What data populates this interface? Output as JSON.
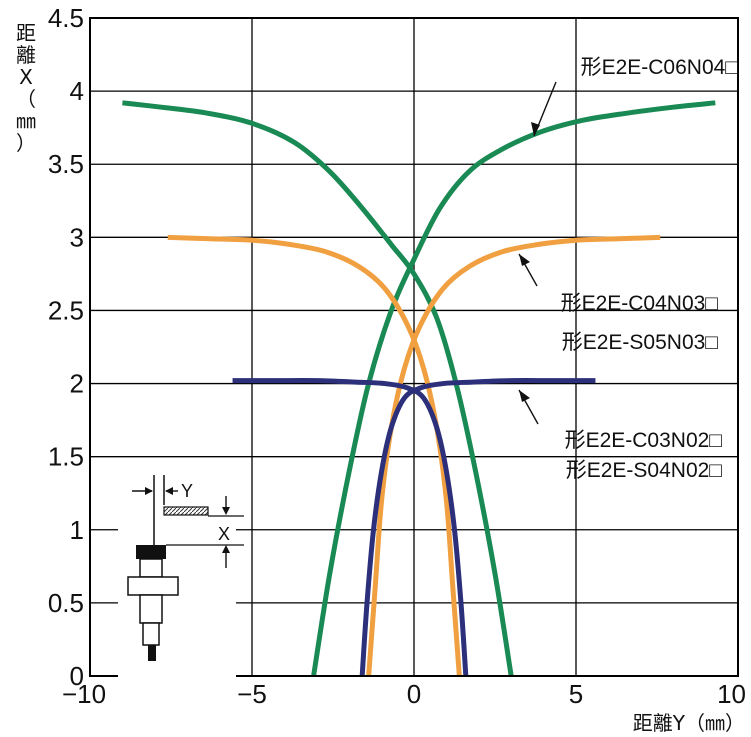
{
  "chart_data": {
    "type": "line",
    "xlabel": "距離Y（㎜）",
    "ylabel": "距離X（㎜）",
    "xlim": [
      -10,
      10
    ],
    "ylim": [
      0,
      4.5
    ],
    "xticks": [
      "−10",
      "−5",
      "0",
      "5",
      "10"
    ],
    "yticks": [
      "0",
      "0.5",
      "1",
      "1.5",
      "2",
      "2.5",
      "3",
      "3.5",
      "4",
      "4.5"
    ],
    "grid": true,
    "colors": {
      "e2e_c06": "#1a8a55",
      "e2e_c04_s05": "#f0a040",
      "e2e_c03_s04": "#2c2f7a"
    },
    "series": [
      {
        "key": "e2e_c06",
        "name": "形E2E-C06N04□",
        "color": "#1a8a55",
        "curves": [
          {
            "x": [
              -3.1,
              -2.6,
              -2.0,
              -1.4,
              -0.7,
              0,
              0.8,
              1.7,
              2.7,
              3.9,
              5.2,
              6.6,
              8.0,
              9.3
            ],
            "y": [
              0.0,
              0.7,
              1.4,
              2.0,
              2.5,
              2.85,
              3.2,
              3.45,
              3.6,
              3.72,
              3.8,
              3.85,
              3.89,
              3.92
            ]
          },
          {
            "x": [
              -9.0,
              -7.8,
              -6.4,
              -5.0,
              -3.7,
              -2.6,
              -1.6,
              -0.7,
              0,
              0.7,
              1.3,
              1.9,
              2.5,
              3.0
            ],
            "y": [
              3.92,
              3.89,
              3.85,
              3.78,
              3.65,
              3.45,
              3.2,
              2.95,
              2.75,
              2.45,
              2.0,
              1.4,
              0.7,
              0.0
            ]
          }
        ]
      },
      {
        "key": "e2e_c04_s05",
        "name": "形E2E-C04N03□ / 形E2E-S05N03□",
        "color": "#f0a040",
        "curves": [
          {
            "x": [
              -1.4,
              -1.2,
              -1.0,
              -0.7,
              -0.3,
              0.2,
              0.9,
              1.7,
              2.7,
              3.8,
              5.0,
              6.3,
              7.6
            ],
            "y": [
              0.0,
              0.6,
              1.2,
              1.7,
              2.1,
              2.4,
              2.65,
              2.8,
              2.9,
              2.95,
              2.98,
              2.99,
              3.0
            ]
          },
          {
            "x": [
              -7.6,
              -6.3,
              -5.0,
              -3.8,
              -2.7,
              -1.7,
              -0.9,
              -0.2,
              0.3,
              0.7,
              1.0,
              1.2,
              1.4
            ],
            "y": [
              3.0,
              2.99,
              2.98,
              2.95,
              2.9,
              2.8,
              2.65,
              2.4,
              2.1,
              1.7,
              1.2,
              0.6,
              0.0
            ]
          }
        ]
      },
      {
        "key": "e2e_c03_s04",
        "name": "形E2E-C03N02□ / 形E2E-S04N02□",
        "color": "#2c2f7a",
        "curves": [
          {
            "x": [
              -1.6,
              -1.45,
              -1.25,
              -1.0,
              -0.7,
              -0.3,
              0.2,
              0.9,
              1.8,
              3.0,
              4.3,
              5.6
            ],
            "y": [
              0.0,
              0.5,
              1.0,
              1.4,
              1.7,
              1.9,
              1.97,
              2.0,
              2.01,
              2.02,
              2.02,
              2.02
            ]
          },
          {
            "x": [
              -5.6,
              -4.3,
              -3.0,
              -1.8,
              -0.9,
              -0.2,
              0.3,
              0.7,
              1.0,
              1.25,
              1.45,
              1.6
            ],
            "y": [
              2.02,
              2.02,
              2.02,
              2.01,
              2.0,
              1.97,
              1.9,
              1.7,
              1.4,
              1.0,
              0.5,
              0.0
            ]
          }
        ]
      }
    ],
    "annotations": [
      {
        "series": "e2e_c06",
        "lines": [
          "形E2E-C06N04□"
        ]
      },
      {
        "series": "e2e_c04_s05",
        "lines": [
          "形E2E-C04N03□",
          "形E2E-S05N03□"
        ]
      },
      {
        "series": "e2e_c03_s04",
        "lines": [
          "形E2E-C03N02□",
          "形E2E-S04N02□"
        ]
      }
    ],
    "inset_diagram": {
      "label_y": "Y",
      "label_x": "X"
    }
  }
}
